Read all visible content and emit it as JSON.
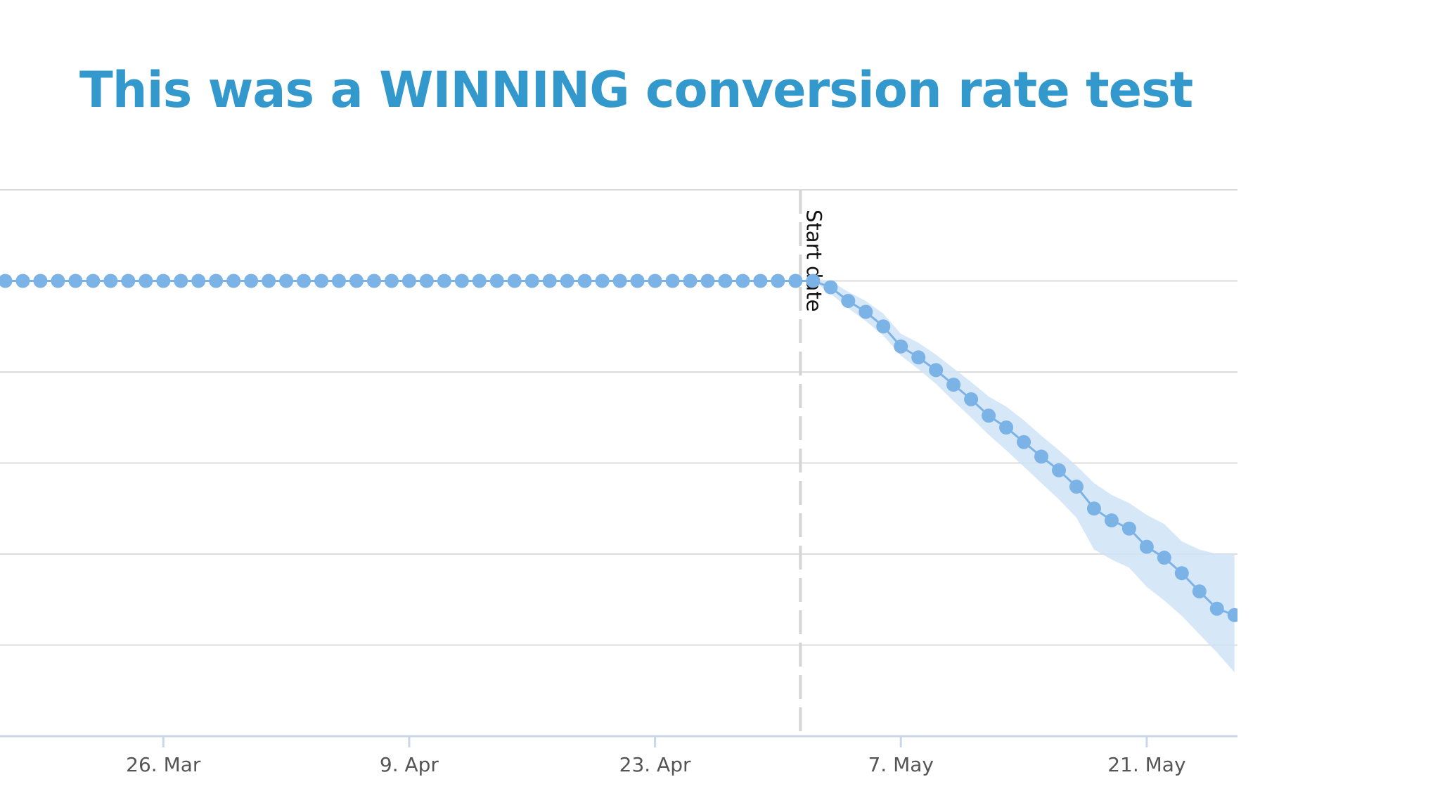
{
  "slide": {
    "title": "This was a WINNING conversion rate test",
    "title_color": "#3399cc"
  },
  "chart_data": {
    "type": "line",
    "title": "",
    "xlabel": "",
    "ylabel": "",
    "x_tick_labels": [
      "26. Mar",
      "9. Apr",
      "23. Apr",
      "7. May",
      "21. May"
    ],
    "x_ticks_day": [
      9,
      23,
      37,
      51,
      65
    ],
    "x_range_day": [
      0,
      70
    ],
    "y_range": [
      0,
      6
    ],
    "y_gridlines": [
      0,
      1,
      2,
      3,
      4,
      5,
      6
    ],
    "grid": true,
    "legend": "none",
    "plot_line": {
      "label": "Start date",
      "day": 45
    },
    "series": [
      {
        "color": "#7bb3e6",
        "band_color": "#cfe3f7",
        "points": [
          [
            0,
            5.0
          ],
          [
            1,
            5.0
          ],
          [
            2,
            5.0
          ],
          [
            3,
            5.0
          ],
          [
            4,
            5.0
          ],
          [
            5,
            5.0
          ],
          [
            6,
            5.0
          ],
          [
            7,
            5.0
          ],
          [
            8,
            5.0
          ],
          [
            9,
            5.0
          ],
          [
            10,
            5.0
          ],
          [
            11,
            5.0
          ],
          [
            12,
            5.0
          ],
          [
            13,
            5.0
          ],
          [
            14,
            5.0
          ],
          [
            15,
            5.0
          ],
          [
            16,
            5.0
          ],
          [
            17,
            5.0
          ],
          [
            18,
            5.0
          ],
          [
            19,
            5.0
          ],
          [
            20,
            5.0
          ],
          [
            21,
            5.0
          ],
          [
            22,
            5.0
          ],
          [
            23,
            5.0
          ],
          [
            24,
            5.0
          ],
          [
            25,
            5.0
          ],
          [
            26,
            5.0
          ],
          [
            27,
            5.0
          ],
          [
            28,
            5.0
          ],
          [
            29,
            5.0
          ],
          [
            30,
            5.0
          ],
          [
            31,
            5.0
          ],
          [
            32,
            5.0
          ],
          [
            33,
            5.0
          ],
          [
            34,
            5.0
          ],
          [
            35,
            5.0
          ],
          [
            36,
            5.0
          ],
          [
            37,
            5.0
          ],
          [
            38,
            5.0
          ],
          [
            39,
            5.0
          ],
          [
            40,
            5.0
          ],
          [
            41,
            5.0
          ],
          [
            42,
            5.0
          ],
          [
            43,
            5.0
          ],
          [
            44,
            5.0
          ],
          [
            45,
            5.0
          ],
          [
            46,
            5.0
          ],
          [
            47,
            4.93
          ],
          [
            48,
            4.78
          ],
          [
            49,
            4.66
          ],
          [
            50,
            4.5
          ],
          [
            51,
            4.28
          ],
          [
            52,
            4.16
          ],
          [
            53,
            4.02
          ],
          [
            54,
            3.86
          ],
          [
            55,
            3.7
          ],
          [
            56,
            3.52
          ],
          [
            57,
            3.39
          ],
          [
            58,
            3.23
          ],
          [
            59,
            3.07
          ],
          [
            60,
            2.92
          ],
          [
            61,
            2.74
          ],
          [
            62,
            2.5
          ],
          [
            63,
            2.37
          ],
          [
            64,
            2.28
          ],
          [
            65,
            2.08
          ],
          [
            66,
            1.96
          ],
          [
            67,
            1.79
          ],
          [
            68,
            1.59
          ],
          [
            69,
            1.4
          ],
          [
            70,
            1.33
          ]
        ],
        "band_low": [
          [
            45,
            5.0
          ],
          [
            46,
            5.0
          ],
          [
            47,
            4.86
          ],
          [
            48,
            4.7
          ],
          [
            49,
            4.56
          ],
          [
            50,
            4.4
          ],
          [
            51,
            4.18
          ],
          [
            52,
            4.03
          ],
          [
            53,
            3.87
          ],
          [
            54,
            3.68
          ],
          [
            55,
            3.5
          ],
          [
            56,
            3.31
          ],
          [
            57,
            3.14
          ],
          [
            58,
            2.96
          ],
          [
            59,
            2.78
          ],
          [
            60,
            2.6
          ],
          [
            61,
            2.4
          ],
          [
            62,
            2.05
          ],
          [
            63,
            1.94
          ],
          [
            64,
            1.85
          ],
          [
            65,
            1.64
          ],
          [
            66,
            1.49
          ],
          [
            67,
            1.32
          ],
          [
            68,
            1.12
          ],
          [
            69,
            0.92
          ],
          [
            70,
            0.7
          ]
        ],
        "band_high": [
          [
            45,
            5.0
          ],
          [
            46,
            5.0
          ],
          [
            47,
            5.0
          ],
          [
            48,
            4.88
          ],
          [
            49,
            4.78
          ],
          [
            50,
            4.64
          ],
          [
            51,
            4.42
          ],
          [
            52,
            4.32
          ],
          [
            53,
            4.19
          ],
          [
            54,
            4.04
          ],
          [
            55,
            3.89
          ],
          [
            56,
            3.73
          ],
          [
            57,
            3.62
          ],
          [
            58,
            3.47
          ],
          [
            59,
            3.3
          ],
          [
            60,
            3.14
          ],
          [
            61,
            2.97
          ],
          [
            62,
            2.78
          ],
          [
            63,
            2.65
          ],
          [
            64,
            2.56
          ],
          [
            65,
            2.43
          ],
          [
            66,
            2.33
          ],
          [
            67,
            2.14
          ],
          [
            68,
            2.05
          ],
          [
            69,
            2.0
          ],
          [
            70,
            2.0
          ]
        ]
      }
    ]
  }
}
